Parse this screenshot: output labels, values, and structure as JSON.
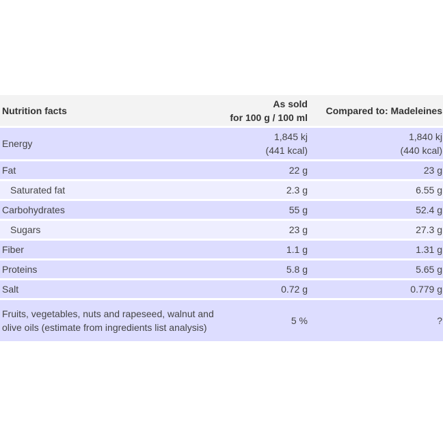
{
  "header": {
    "col1": "Nutrition facts",
    "col2_line1": "As sold",
    "col2_line2": "for 100 g / 100 ml",
    "col3": "Compared to: Madeleines"
  },
  "rows": [
    {
      "name": "Energy",
      "value_line1": "1,845 kj",
      "value_line2": "(441 kcal)",
      "compare_line1": "1,840 kj",
      "compare_line2": "(440 kcal)"
    },
    {
      "name": "Fat",
      "value": "22 g",
      "compare": "23 g"
    },
    {
      "name": "Saturated fat",
      "value": "2.3 g",
      "compare": "6.55 g"
    },
    {
      "name": "Carbohydrates",
      "value": "55 g",
      "compare": "52.4 g"
    },
    {
      "name": "Sugars",
      "value": "23 g",
      "compare": "27.3 g"
    },
    {
      "name": "Fiber",
      "value": "1.1 g",
      "compare": "1.31 g"
    },
    {
      "name": "Proteins",
      "value": "5.8 g",
      "compare": "5.65 g"
    },
    {
      "name": "Salt",
      "value": "0.72 g",
      "compare": "0.779 g"
    },
    {
      "name": "Fruits, vegetables, nuts and rapeseed, walnut and olive oils (estimate from ingredients list analysis)",
      "value": "5 %",
      "compare": "?"
    }
  ]
}
